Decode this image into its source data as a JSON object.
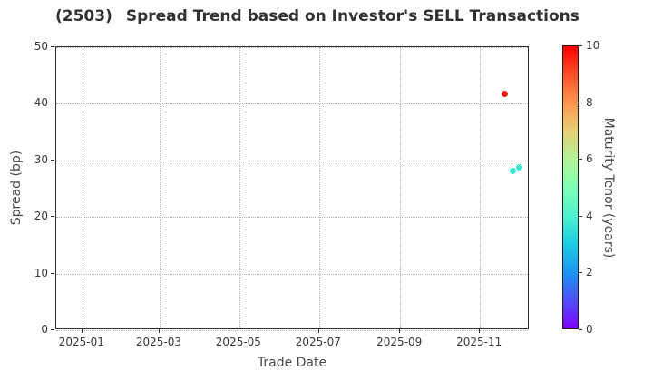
{
  "title": {
    "code": "(2503)",
    "text": "Spread Trend based on Investor's SELL Transactions"
  },
  "chart_data": {
    "type": "scatter",
    "title": "(2503)  Spread Trend based on Investor's SELL Transactions",
    "xlabel": "Trade Date",
    "ylabel": "Spread (bp)",
    "x_domain": [
      "2024-12-12",
      "2025-12-09"
    ],
    "ylim": [
      0,
      50
    ],
    "y_ticks": [
      0,
      10,
      20,
      30,
      40,
      50
    ],
    "x_ticks": [
      {
        "label": "2025-01",
        "date": "2025-01-01"
      },
      {
        "label": "2025-03",
        "date": "2025-03-01"
      },
      {
        "label": "2025-05",
        "date": "2025-05-01"
      },
      {
        "label": "2025-07",
        "date": "2025-07-01"
      },
      {
        "label": "2025-09",
        "date": "2025-09-01"
      },
      {
        "label": "2025-11",
        "date": "2025-11-01"
      }
    ],
    "grid": "dotted",
    "legend": "none",
    "points": [
      {
        "date": "2025-11-20",
        "spread": 41.7,
        "maturity": 10.0,
        "color": "#ee1c10"
      },
      {
        "date": "2025-11-26",
        "spread": 28.2,
        "maturity": 4.2,
        "color": "#3ce8d2"
      },
      {
        "date": "2025-12-01",
        "spread": 28.8,
        "maturity": 4.2,
        "color": "#3ce8d2"
      }
    ],
    "colorbar": {
      "label": "Maturity Tenor (years)",
      "min": 0,
      "max": 10,
      "ticks": [
        0,
        2,
        4,
        6,
        8,
        10
      ],
      "colormap": "rainbow",
      "gradient_bottom_to_top": [
        "#8000ff",
        "#4d4ffc",
        "#1a96f3",
        "#1acee3",
        "#4df2ce",
        "#80ffb4",
        "#b3f296",
        "#e6ce74",
        "#ff964f",
        "#ff4f28",
        "#ff0000"
      ]
    },
    "colors": {
      "background": "#ffffff",
      "grid": "#b0b0b0",
      "spine": "#2f2f2f",
      "tick_label": "#3a3a3a",
      "axis_label": "#4a4a4a",
      "title": "#323232"
    }
  }
}
